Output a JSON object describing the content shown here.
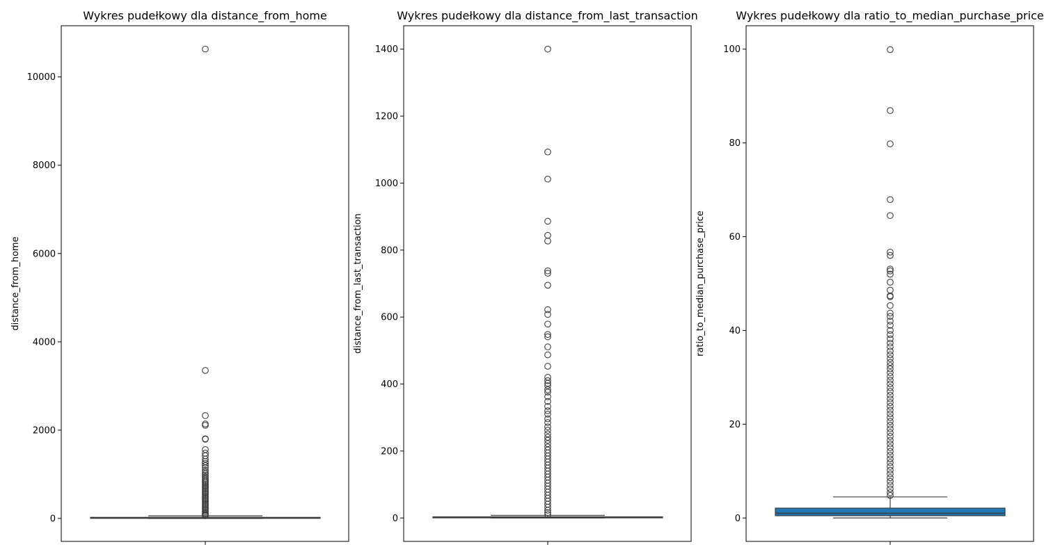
{
  "chart_data": [
    {
      "type": "box",
      "title": "Wykres pudełkowy dla distance_from_home",
      "xlabel": "",
      "ylabel": "distance_from_home",
      "ylim": [
        -520,
        11160
      ],
      "yticks": [
        0,
        2000,
        4000,
        6000,
        8000,
        10000
      ],
      "ytick_labels": [
        "0",
        "2000",
        "4000",
        "6000",
        "8000",
        "10000"
      ],
      "box": {
        "q1": 3.9,
        "median": 10.0,
        "q3": 25.7,
        "whisker_low": 0.0,
        "whisker_high": 58.4
      },
      "box_color": "#ffffff",
      "outliers": [
        10632,
        3352,
        2330,
        2140,
        2110,
        1805,
        1795,
        1560,
        1480,
        1420,
        1345,
        1290,
        1250,
        1200,
        1150,
        1090,
        1050,
        1010,
        975,
        940,
        905,
        870,
        840,
        810,
        780,
        750,
        720,
        690,
        660,
        630,
        600,
        570,
        540,
        510,
        480,
        450,
        420,
        390,
        360,
        330,
        300,
        270,
        240,
        210,
        180,
        150,
        120,
        95,
        75,
        62
      ]
    },
    {
      "type": "box",
      "title": "Wykres pudełkowy dla distance_from_last_transaction",
      "xlabel": "",
      "ylabel": "distance_from_last_transaction",
      "ylim": [
        -70,
        1470
      ],
      "yticks": [
        0,
        200,
        400,
        600,
        800,
        1000,
        1200,
        1400
      ],
      "ytick_labels": [
        "0",
        "200",
        "400",
        "600",
        "800",
        "1000",
        "1200",
        "1400"
      ],
      "box": {
        "q1": 0.3,
        "median": 1.0,
        "q3": 3.4,
        "whisker_low": 0.0,
        "whisker_high": 7.9
      },
      "box_color": "#ffffff",
      "outliers": [
        1400,
        1093,
        1012,
        886,
        844,
        827,
        738,
        731,
        695,
        622,
        608,
        579,
        548,
        541,
        511,
        487,
        453,
        420,
        410,
        402,
        395,
        383,
        376,
        362,
        348,
        333,
        320,
        310,
        296,
        285,
        272,
        262,
        251,
        241,
        232,
        222,
        212,
        203,
        194,
        185,
        176,
        167,
        158,
        149,
        140,
        131,
        122,
        113,
        104,
        95,
        86,
        77,
        68,
        59,
        50,
        41,
        32,
        23,
        16,
        10
      ]
    },
    {
      "type": "box",
      "title": "Wykres pudełkowy dla ratio_to_median_purchase_price",
      "xlabel": "",
      "ylabel": "ratio_to_median_purchase_price",
      "ylim": [
        -5,
        105
      ],
      "yticks": [
        0,
        20,
        40,
        60,
        80,
        100
      ],
      "ytick_labels": [
        "0",
        "20",
        "40",
        "60",
        "80",
        "100"
      ],
      "box": {
        "q1": 0.48,
        "median": 1.0,
        "q3": 2.1,
        "whisker_low": 0.0,
        "whisker_high": 4.5
      },
      "box_color": "#1f77b4",
      "outliers": [
        99.9,
        86.9,
        79.8,
        67.9,
        64.5,
        56.7,
        56.0,
        53.1,
        52.7,
        52.0,
        50.3,
        48.6,
        47.4,
        47.2,
        45.3,
        43.7,
        43.0,
        42.0,
        41.1,
        40.0,
        39.1,
        38.2,
        37.3,
        36.5,
        35.6,
        34.8,
        34.0,
        33.2,
        32.5,
        31.8,
        31.0,
        30.2,
        29.4,
        28.6,
        27.8,
        27.0,
        26.2,
        25.4,
        24.6,
        23.8,
        23.0,
        22.2,
        21.4,
        20.6,
        19.8,
        19.0,
        18.2,
        17.4,
        16.6,
        15.8,
        15.0,
        14.2,
        13.4,
        12.6,
        11.8,
        11.0,
        10.2,
        9.4,
        8.6,
        7.8,
        7.0,
        6.2,
        5.4,
        4.8
      ]
    }
  ]
}
